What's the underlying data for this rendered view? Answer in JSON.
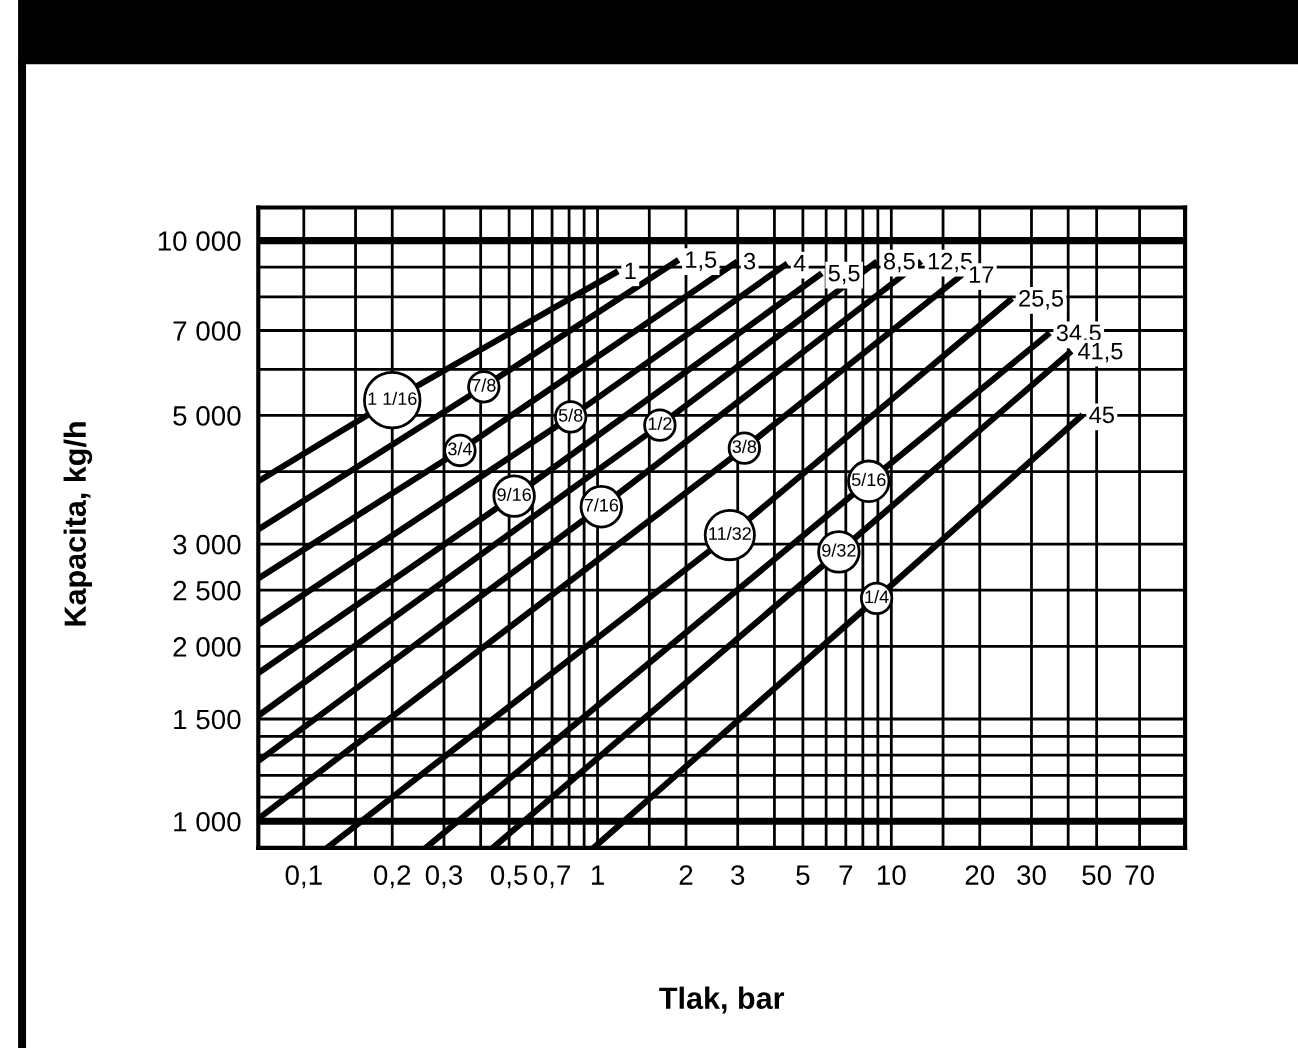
{
  "chart_data": {
    "type": "line",
    "xlabel": "Tlak, bar",
    "ylabel": "Kapacita, kg/h",
    "log": "xy",
    "grid": true,
    "legend": false,
    "marker": "none",
    "line_style": "solid",
    "xlim": [
      0.07,
      100
    ],
    "ylim": [
      900,
      11400
    ],
    "xticks": [
      {
        "value": 0.1,
        "label": "0,1"
      },
      {
        "value": 0.15,
        "label": null
      },
      {
        "value": 0.2,
        "label": "0,2"
      },
      {
        "value": 0.3,
        "label": "0,3"
      },
      {
        "value": 0.4,
        "label": null
      },
      {
        "value": 0.5,
        "label": "0,5"
      },
      {
        "value": 0.6,
        "label": null
      },
      {
        "value": 0.7,
        "label": "0,7"
      },
      {
        "value": 0.8,
        "label": null
      },
      {
        "value": 0.9,
        "label": null
      },
      1,
      {
        "value": 1.5,
        "label": null
      },
      2,
      3,
      {
        "value": 4,
        "label": null
      },
      5,
      {
        "value": 6,
        "label": null
      },
      7,
      {
        "value": 8,
        "label": null
      },
      {
        "value": 9,
        "label": null
      },
      10,
      {
        "value": 15,
        "label": null
      },
      20,
      30,
      {
        "value": 40,
        "label": null
      },
      50,
      70
    ],
    "yticks": [
      {
        "value": 1000,
        "label": "1 000"
      },
      {
        "value": 1100,
        "label": null
      },
      {
        "value": 1200,
        "label": null
      },
      {
        "value": 1300,
        "label": null
      },
      {
        "value": 1400,
        "label": null
      },
      {
        "value": 1500,
        "label": "1 500"
      },
      {
        "value": 2000,
        "label": "2 000"
      },
      {
        "value": 2500,
        "label": "2 500"
      },
      {
        "value": 3000,
        "label": "3 000"
      },
      {
        "value": 4000,
        "label": null
      },
      {
        "value": 5000,
        "label": "5 000"
      },
      {
        "value": 6000,
        "label": null
      },
      {
        "value": 7000,
        "label": "7 000"
      },
      {
        "value": 8000,
        "label": null
      },
      {
        "value": 9000,
        "label": null
      },
      {
        "value": 10000,
        "label": "10 000"
      }
    ],
    "series": [
      {
        "name": "1 1/16",
        "color": "#000000",
        "x": [
          0.07,
          0.2,
          1.15
        ],
        "values": [
          3850,
          5310,
          8800
        ]
      },
      {
        "name": "7/8",
        "color": "#000000",
        "x": [
          0.07,
          0.41,
          1.85
        ],
        "values": [
          3180,
          5600,
          9200
        ]
      },
      {
        "name": "3/4",
        "color": "#000000",
        "x": [
          0.07,
          0.34,
          2.93
        ],
        "values": [
          2620,
          4350,
          9140
        ]
      },
      {
        "name": "5/8",
        "color": "#000000",
        "x": [
          0.07,
          0.81,
          4.34
        ],
        "values": [
          2180,
          4970,
          9070
        ]
      },
      {
        "name": "9/16",
        "color": "#000000",
        "x": [
          0.07,
          0.52,
          5.69
        ],
        "values": [
          1800,
          3630,
          8720
        ]
      },
      {
        "name": "1/2",
        "color": "#000000",
        "x": [
          0.07,
          1.63,
          8.77
        ],
        "values": [
          1520,
          4810,
          9140
        ]
      },
      {
        "name": "7/16",
        "color": "#000000",
        "x": [
          0.07,
          1.03,
          12.4
        ],
        "values": [
          1270,
          3480,
          9140
        ]
      },
      {
        "name": "3/8",
        "color": "#000000",
        "x": [
          0.07,
          3.16,
          17.1
        ],
        "values": [
          1010,
          4390,
          8670
        ]
      },
      {
        "name": "11/32",
        "color": "#000000",
        "x": [
          0.12,
          2.82,
          25.3
        ],
        "values": [
          900,
          3110,
          7890
        ]
      },
      {
        "name": "5/16",
        "color": "#000000",
        "x": [
          0.26,
          8.38,
          34
        ],
        "values": [
          900,
          3850,
          6880
        ]
      },
      {
        "name": "9/32",
        "color": "#000000",
        "x": [
          0.44,
          6.63,
          40.3
        ],
        "values": [
          900,
          2910,
          6400
        ]
      },
      {
        "name": "1/4",
        "color": "#000000",
        "x": [
          0.97,
          8.91,
          44
        ],
        "values": [
          900,
          2420,
          4970
        ]
      }
    ],
    "annotations": [
      {
        "text": "1",
        "x": 1.15,
        "y": 8800
      },
      {
        "text": "1,5",
        "x": 1.85,
        "y": 9200
      },
      {
        "text": "3",
        "x": 2.93,
        "y": 9140
      },
      {
        "text": "4",
        "x": 4.34,
        "y": 9070
      },
      {
        "text": "5,5",
        "x": 5.69,
        "y": 8720
      },
      {
        "text": "8,5",
        "x": 8.77,
        "y": 9140
      },
      {
        "text": "12,5",
        "x": 12.4,
        "y": 9140
      },
      {
        "text": "17",
        "x": 17.1,
        "y": 8670
      },
      {
        "text": "25,5",
        "x": 25.3,
        "y": 7890
      },
      {
        "text": "34,5",
        "x": 34,
        "y": 6880
      },
      {
        "text": "41,5",
        "x": 40.3,
        "y": 6400
      },
      {
        "text": "45",
        "x": 44,
        "y": 4970
      }
    ]
  }
}
